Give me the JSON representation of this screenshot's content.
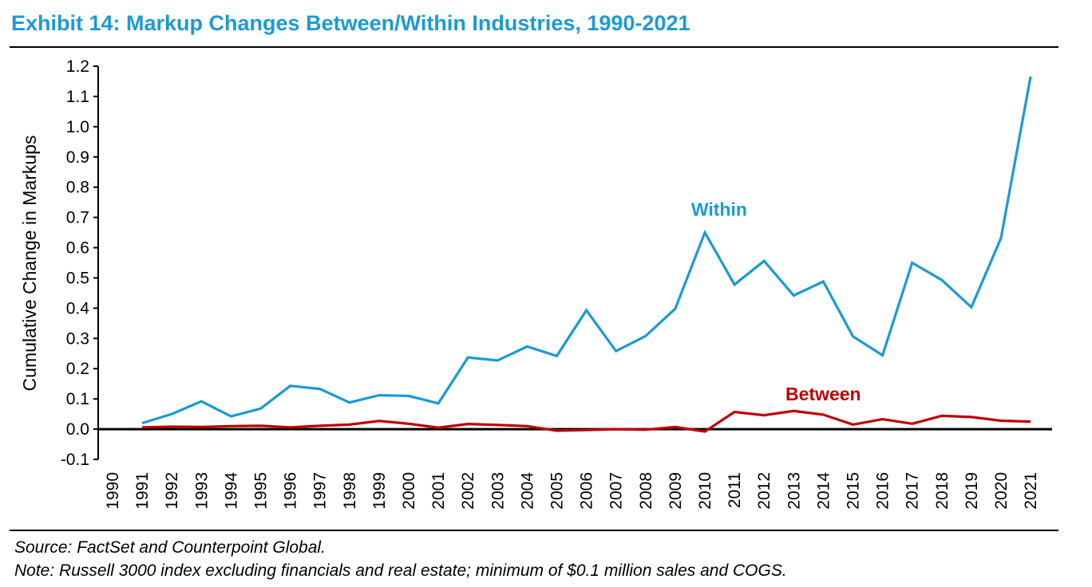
{
  "title": "Exhibit 14: Markup Changes Between/Within Industries, 1990-2021",
  "footer": {
    "source": "Source: FactSet and Counterpoint Global.",
    "note": "Note: Russell 3000 index excluding financials and real estate; minimum of $0.1 million sales and COGS."
  },
  "chart_data": {
    "type": "line",
    "ylabel": "Cumulative Change in Markups",
    "xlabel": "",
    "ylim": [
      -0.1,
      1.2
    ],
    "yticks": [
      "-0.1",
      "0.0",
      "0.1",
      "0.2",
      "0.3",
      "0.4",
      "0.5",
      "0.6",
      "0.7",
      "0.8",
      "0.9",
      "1.0",
      "1.1",
      "1.2"
    ],
    "grid": false,
    "legend": "inline labels",
    "categories": [
      "1990",
      "1991",
      "1992",
      "1993",
      "1994",
      "1995",
      "1996",
      "1997",
      "1998",
      "1999",
      "2000",
      "2001",
      "2002",
      "2003",
      "2004",
      "2005",
      "2006",
      "2007",
      "2008",
      "2009",
      "2010",
      "2011",
      "2012",
      "2013",
      "2014",
      "2015",
      "2016",
      "2017",
      "2018",
      "2019",
      "2020",
      "2021"
    ],
    "series": [
      {
        "name": "Within",
        "color": "#1b9ad6",
        "values": [
          null,
          0.02,
          0.05,
          0.092,
          0.042,
          0.068,
          0.143,
          0.133,
          0.088,
          0.112,
          0.11,
          0.085,
          0.237,
          0.227,
          0.273,
          0.242,
          0.393,
          0.258,
          0.308,
          0.398,
          0.65,
          0.478,
          0.556,
          0.442,
          0.488,
          0.307,
          0.244,
          0.55,
          0.493,
          0.403,
          0.632,
          1.166
        ]
      },
      {
        "name": "Between",
        "color": "#c00000",
        "values": [
          null,
          0.006,
          0.008,
          0.007,
          0.01,
          0.011,
          0.006,
          0.011,
          0.015,
          0.027,
          0.018,
          0.005,
          0.017,
          0.014,
          0.01,
          -0.005,
          -0.003,
          0.0,
          -0.002,
          0.007,
          -0.008,
          0.057,
          0.046,
          0.06,
          0.048,
          0.015,
          0.033,
          0.018,
          0.044,
          0.04,
          0.028,
          0.025
        ]
      }
    ]
  }
}
